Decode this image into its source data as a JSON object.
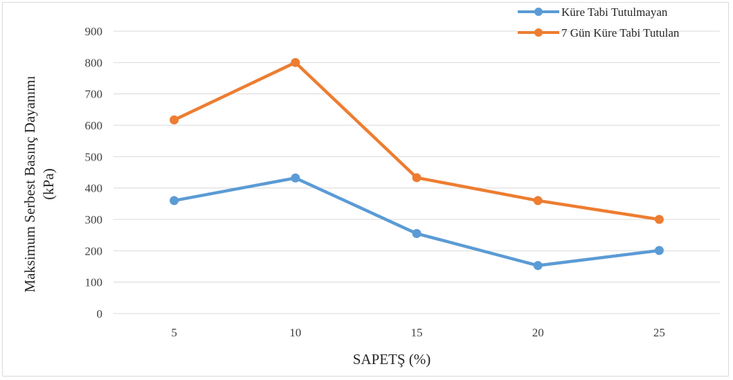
{
  "chart_data": {
    "type": "line",
    "categories": [
      "5",
      "10",
      "15",
      "20",
      "25"
    ],
    "series": [
      {
        "name": "Küre Tabi Tutulmayan",
        "color": "#5b9bd5",
        "values": [
          360,
          432,
          255,
          153,
          201
        ]
      },
      {
        "name": "7 Gün Küre Tabi Tutulan",
        "color": "#ed7d31",
        "values": [
          617,
          800,
          433,
          360,
          300
        ]
      }
    ],
    "xlabel": "SAPETŞ (%)",
    "ylabel": [
      "Maksimum Serbest Basınç Dayanımı",
      "(kPa)"
    ],
    "ylim": [
      0,
      900
    ],
    "yticks": [
      0,
      100,
      200,
      300,
      400,
      500,
      600,
      700,
      800,
      900
    ],
    "grid": true,
    "legend_position": "top-right"
  }
}
